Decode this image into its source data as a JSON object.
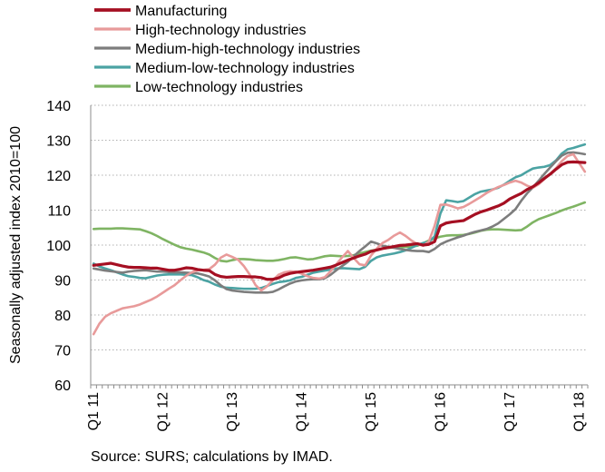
{
  "chart_data": {
    "type": "line",
    "title": "",
    "xlabel": "",
    "ylabel": "Seasonally adjusted index 2010=100",
    "ylim": [
      60,
      140
    ],
    "yticks": [
      60,
      70,
      80,
      90,
      100,
      110,
      120,
      130,
      140
    ],
    "grid": true,
    "legend_position": "top-left",
    "source": "Source: SURS; calculations by IMAD.",
    "x_tick_labels": [
      "Q1 11",
      "Q1 12",
      "Q1 13",
      "Q1 14",
      "Q1 15",
      "Q1 16",
      "Q1 17",
      "Q1 18"
    ],
    "x": [
      "2011-01",
      "2011-02",
      "2011-03",
      "2011-04",
      "2011-05",
      "2011-06",
      "2011-07",
      "2011-08",
      "2011-09",
      "2011-10",
      "2011-11",
      "2011-12",
      "2012-01",
      "2012-02",
      "2012-03",
      "2012-04",
      "2012-05",
      "2012-06",
      "2012-07",
      "2012-08",
      "2012-09",
      "2012-10",
      "2012-11",
      "2012-12",
      "2013-01",
      "2013-02",
      "2013-03",
      "2013-04",
      "2013-05",
      "2013-06",
      "2013-07",
      "2013-08",
      "2013-09",
      "2013-10",
      "2013-11",
      "2013-12",
      "2014-01",
      "2014-02",
      "2014-03",
      "2014-04",
      "2014-05",
      "2014-06",
      "2014-07",
      "2014-08",
      "2014-09",
      "2014-10",
      "2014-11",
      "2014-12",
      "2015-01",
      "2015-02",
      "2015-03",
      "2015-04",
      "2015-05",
      "2015-06",
      "2015-07",
      "2015-08",
      "2015-09",
      "2015-10",
      "2015-11",
      "2015-12",
      "2016-01",
      "2016-02",
      "2016-03",
      "2016-04",
      "2016-05",
      "2016-06",
      "2016-07",
      "2016-08",
      "2016-09",
      "2016-10",
      "2016-11",
      "2016-12",
      "2017-01",
      "2017-02",
      "2017-03",
      "2017-04",
      "2017-05",
      "2017-06",
      "2017-07",
      "2017-08",
      "2017-09",
      "2017-10",
      "2017-11",
      "2017-12",
      "2018-01",
      "2018-02"
    ],
    "series": [
      {
        "name": "Manufacturing",
        "color": "#a50f22",
        "width": 3.2,
        "values": [
          94.2,
          94.4,
          94.6,
          94.8,
          94.4,
          94.0,
          93.7,
          93.6,
          93.6,
          93.5,
          93.4,
          93.4,
          93.1,
          92.8,
          92.8,
          93.1,
          93.5,
          93.4,
          93.0,
          92.8,
          92.7,
          91.6,
          91.0,
          90.8,
          90.9,
          91.0,
          91.0,
          90.9,
          90.9,
          90.7,
          90.2,
          90.2,
          90.6,
          91.4,
          91.9,
          92.2,
          92.4,
          92.6,
          92.8,
          93.1,
          93.4,
          93.7,
          94.3,
          95.0,
          95.7,
          96.3,
          96.9,
          97.4,
          98.2,
          98.6,
          99.0,
          99.3,
          99.6,
          99.9,
          100.0,
          100.2,
          100.4,
          100.0,
          100.2,
          101.0,
          105.5,
          106.3,
          106.6,
          106.8,
          107.0,
          107.9,
          108.8,
          109.5,
          110.0,
          110.6,
          111.2,
          112.0,
          113.2,
          114.0,
          114.8,
          115.9,
          116.7,
          117.8,
          119.1,
          120.3,
          121.7,
          123.0,
          123.7,
          123.8,
          123.7,
          123.6
        ]
      },
      {
        "name": "High-technology industries",
        "color": "#e89a9a",
        "width": 2.6,
        "values": [
          74.5,
          77.5,
          79.5,
          80.5,
          81.2,
          81.9,
          82.2,
          82.5,
          83.0,
          83.7,
          84.4,
          85.3,
          86.4,
          87.5,
          88.5,
          89.9,
          91.2,
          92.2,
          92.8,
          92.9,
          93.1,
          94.4,
          96.4,
          97.3,
          96.6,
          95.8,
          94.0,
          91.6,
          88.6,
          87.0,
          88.2,
          89.9,
          91.5,
          92.2,
          92.5,
          92.4,
          91.8,
          91.1,
          90.6,
          90.4,
          90.8,
          92.5,
          94.5,
          96.5,
          98.3,
          96.3,
          94.5,
          94.2,
          97.0,
          99.0,
          100.6,
          101.5,
          102.7,
          103.6,
          102.6,
          101.3,
          100.3,
          99.8,
          101.0,
          105.5,
          111.5,
          111.6,
          111.1,
          110.5,
          110.9,
          111.8,
          112.8,
          113.8,
          114.9,
          115.8,
          116.6,
          117.2,
          117.9,
          118.4,
          117.9,
          117.0,
          116.4,
          117.4,
          118.9,
          120.4,
          122.0,
          124.0,
          125.5,
          126.0,
          123.5,
          121.0
        ]
      },
      {
        "name": "Medium-high-technology industries",
        "color": "#7d7d7d",
        "width": 2.6,
        "values": [
          93.3,
          93.0,
          92.7,
          92.5,
          92.3,
          92.1,
          92.4,
          92.6,
          92.7,
          92.8,
          92.6,
          92.4,
          92.4,
          92.3,
          92.2,
          92.2,
          92.1,
          92.0,
          91.9,
          91.5,
          91.0,
          89.9,
          88.5,
          87.4,
          87.0,
          86.8,
          86.6,
          86.5,
          86.4,
          86.4,
          86.4,
          86.6,
          87.3,
          88.2,
          89.0,
          89.6,
          89.9,
          90.1,
          90.2,
          90.2,
          90.5,
          91.5,
          92.8,
          94.0,
          95.2,
          96.8,
          98.3,
          99.6,
          101.0,
          100.5,
          99.8,
          99.5,
          99.2,
          98.9,
          98.6,
          98.4,
          98.3,
          98.3,
          98.0,
          98.9,
          100.2,
          101.0,
          101.6,
          102.2,
          102.7,
          103.3,
          103.8,
          104.2,
          104.6,
          105.3,
          106.2,
          107.5,
          108.8,
          110.3,
          112.7,
          114.8,
          116.5,
          118.4,
          120.4,
          122.2,
          124.0,
          125.6,
          126.4,
          126.5,
          126.3,
          126.0
        ]
      },
      {
        "name": "Medium-low-technology industries",
        "color": "#4ba3a3",
        "width": 2.6,
        "values": [
          94.7,
          93.9,
          93.3,
          92.8,
          92.2,
          91.6,
          91.1,
          90.9,
          90.6,
          90.5,
          90.9,
          91.3,
          91.5,
          91.6,
          91.6,
          91.6,
          91.5,
          91.4,
          90.8,
          90.0,
          89.5,
          88.7,
          88.1,
          87.8,
          87.7,
          87.6,
          87.5,
          87.5,
          87.5,
          87.7,
          88.3,
          88.9,
          89.4,
          89.6,
          89.9,
          90.6,
          90.9,
          91.5,
          92.1,
          92.4,
          92.7,
          93.0,
          93.3,
          93.4,
          93.3,
          93.2,
          93.1,
          93.8,
          95.5,
          96.5,
          97.0,
          97.3,
          97.6,
          98.0,
          98.5,
          99.2,
          100.0,
          100.6,
          100.9,
          102.5,
          109.0,
          112.8,
          112.6,
          112.3,
          112.6,
          113.6,
          114.6,
          115.3,
          115.6,
          115.9,
          116.4,
          117.3,
          118.4,
          119.4,
          120.0,
          121.0,
          121.9,
          122.2,
          122.4,
          122.9,
          124.2,
          126.2,
          127.4,
          127.8,
          128.3,
          128.8
        ]
      },
      {
        "name": "Low-technology industries",
        "color": "#7fb463",
        "width": 2.6,
        "values": [
          104.6,
          104.7,
          104.7,
          104.7,
          104.8,
          104.8,
          104.7,
          104.6,
          104.5,
          104.0,
          103.4,
          102.6,
          101.7,
          100.9,
          100.1,
          99.4,
          99.0,
          98.7,
          98.3,
          97.9,
          97.3,
          96.3,
          95.5,
          95.3,
          95.7,
          96.0,
          96.0,
          95.9,
          95.7,
          95.6,
          95.5,
          95.5,
          95.7,
          96.0,
          96.4,
          96.5,
          96.2,
          95.9,
          96.0,
          96.4,
          96.8,
          97.0,
          96.9,
          96.8,
          96.9,
          97.1,
          97.6,
          98.0,
          98.4,
          98.7,
          99.0,
          99.2,
          99.3,
          99.4,
          99.5,
          99.6,
          99.8,
          100.5,
          101.3,
          101.9,
          102.4,
          102.7,
          102.8,
          102.8,
          102.9,
          103.2,
          103.6,
          104.1,
          104.4,
          104.5,
          104.5,
          104.4,
          104.3,
          104.2,
          104.3,
          105.3,
          106.5,
          107.4,
          108.0,
          108.6,
          109.2,
          109.9,
          110.5,
          111.0,
          111.6,
          112.2
        ]
      }
    ]
  }
}
